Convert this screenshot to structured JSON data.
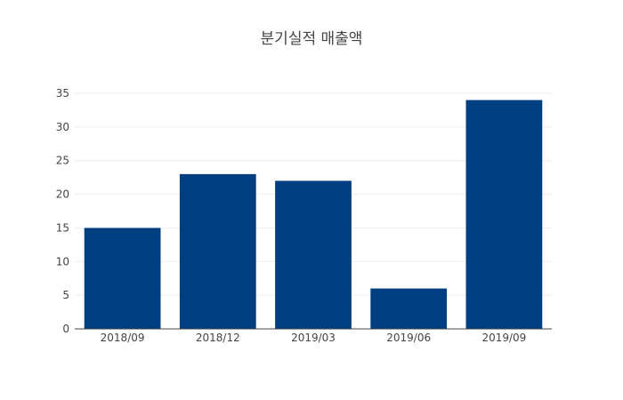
{
  "chart_data": {
    "type": "bar",
    "title": "분기실적 매출액",
    "xlabel": "",
    "ylabel": "",
    "categories": [
      "2018/09",
      "2018/12",
      "2019/03",
      "2019/06",
      "2019/09"
    ],
    "values": [
      15,
      23,
      22,
      6,
      34
    ],
    "ylim": [
      0,
      35
    ],
    "yticks": [
      0,
      5,
      10,
      15,
      20,
      25,
      30,
      35
    ],
    "grid": true,
    "legend": "none",
    "bar_color": "#003f7f"
  }
}
